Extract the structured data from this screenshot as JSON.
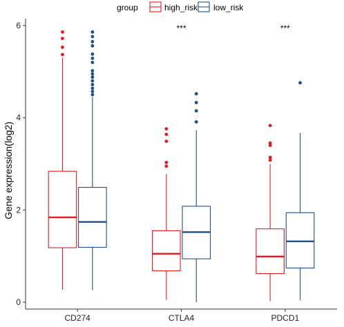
{
  "chart_data": {
    "type": "box",
    "ylabel": "Gene expression(log2)",
    "xlabel": "",
    "ylim": [
      -0.15,
      6.15
    ],
    "yticks": [
      0,
      2,
      4,
      6
    ],
    "grid": false,
    "legend": {
      "title": "group",
      "position": "top",
      "entries": [
        {
          "name": "high_risk",
          "color": "#e41a1c"
        },
        {
          "name": "low_risk",
          "color": "#1f4e8c"
        }
      ]
    },
    "categories": [
      "CD274",
      "CTLA4",
      "PDCD1"
    ],
    "significance": [
      "",
      "***",
      "***"
    ],
    "series": [
      {
        "name": "high_risk",
        "color": "#e41a1c",
        "boxes": [
          {
            "whisker_low": 0.27,
            "q1": 1.18,
            "median": 1.84,
            "q3": 2.84,
            "whisker_high": 5.3,
            "outliers": [
              5.37,
              5.53,
              5.72,
              5.86
            ]
          },
          {
            "whisker_low": 0.05,
            "q1": 0.68,
            "median": 1.05,
            "q3": 1.55,
            "whisker_high": 2.78,
            "outliers": [
              2.95,
              3.03,
              3.49,
              3.64,
              3.76
            ]
          },
          {
            "whisker_low": 0.02,
            "q1": 0.62,
            "median": 0.99,
            "q3": 1.59,
            "whisker_high": 3.0,
            "outliers": [
              3.08,
              3.14,
              3.4,
              3.45,
              3.83
            ]
          }
        ]
      },
      {
        "name": "low_risk",
        "color": "#1f4e8c",
        "boxes": [
          {
            "whisker_low": 0.26,
            "q1": 1.19,
            "median": 1.74,
            "q3": 2.49,
            "whisker_high": 4.45,
            "outliers": [
              4.5,
              4.57,
              4.64,
              4.72,
              4.8,
              4.88,
              4.95,
              5.02,
              5.2,
              5.29,
              5.38,
              5.56,
              5.65,
              5.76,
              5.86
            ]
          },
          {
            "whisker_low": 0.0,
            "q1": 0.94,
            "median": 1.52,
            "q3": 2.08,
            "whisker_high": 3.73,
            "outliers": [
              3.91,
              4.15,
              4.33,
              4.52
            ]
          },
          {
            "whisker_low": 0.04,
            "q1": 0.74,
            "median": 1.32,
            "q3": 1.94,
            "whisker_high": 3.67,
            "outliers": [
              4.76
            ]
          }
        ]
      }
    ]
  }
}
